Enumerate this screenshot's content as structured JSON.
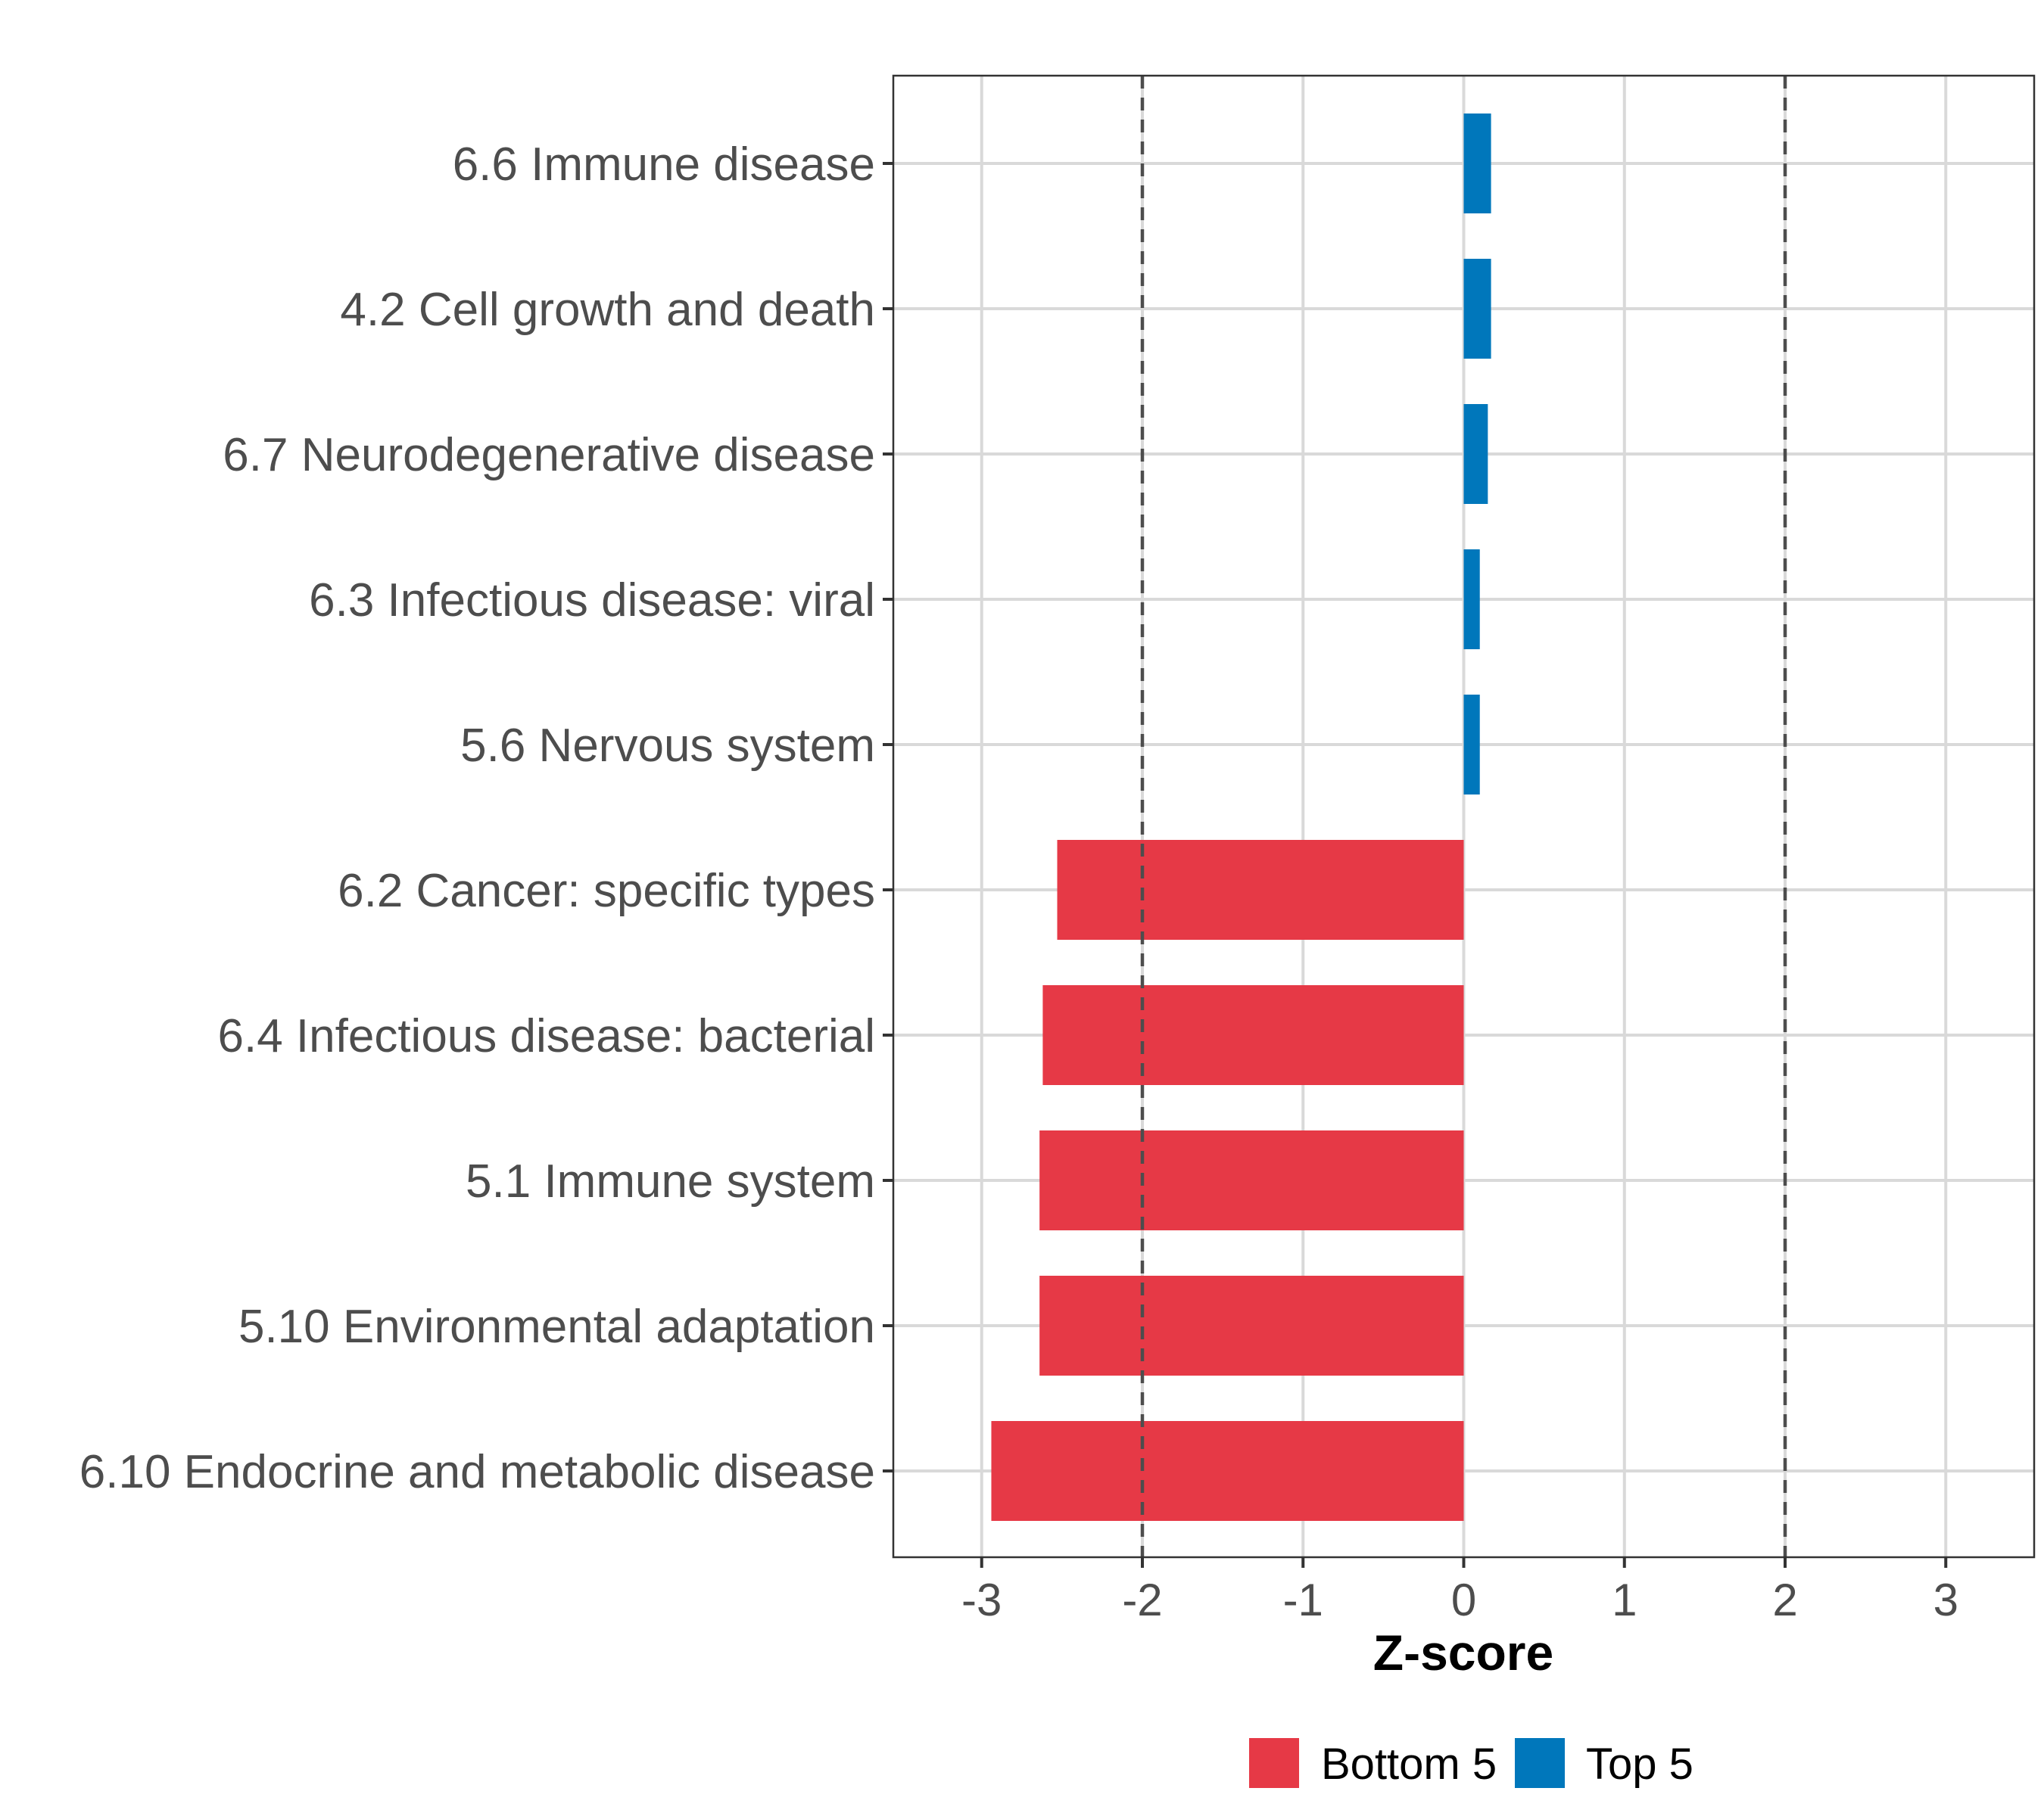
{
  "chart_data": {
    "type": "bar",
    "orientation": "horizontal",
    "title": "",
    "xlabel": "Z-score",
    "ylabel": "",
    "xlim": [
      -3.55,
      3.55
    ],
    "x_ticks": [
      -3,
      -2,
      -1,
      0,
      1,
      2,
      3
    ],
    "x_tick_labels": [
      "-3",
      "-2",
      "-1",
      "0",
      "1",
      "2",
      "3"
    ],
    "reference_lines": [
      -2,
      2
    ],
    "grid": true,
    "legend_position": "bottom",
    "categories": [
      "6.6 Immune disease",
      "4.2 Cell growth and death",
      "6.7 Neurodegenerative disease",
      "6.3 Infectious disease: viral",
      "5.6 Nervous system",
      "6.2 Cancer: specific types",
      "6.4 Infectious disease: bacterial",
      "5.1 Immune system",
      "5.10 Environmental adaptation",
      "6.10 Endocrine and metabolic disease"
    ],
    "values": [
      0.17,
      0.17,
      0.15,
      0.1,
      0.1,
      -2.53,
      -2.62,
      -2.64,
      -2.64,
      -2.94
    ],
    "groups": [
      "Top 5",
      "Top 5",
      "Top 5",
      "Top 5",
      "Top 5",
      "Bottom 5",
      "Bottom 5",
      "Bottom 5",
      "Bottom 5",
      "Bottom 5"
    ],
    "legend": [
      {
        "name": "Bottom 5",
        "color": "#e63946"
      },
      {
        "name": "Top 5",
        "color": "#0077bb"
      }
    ]
  }
}
